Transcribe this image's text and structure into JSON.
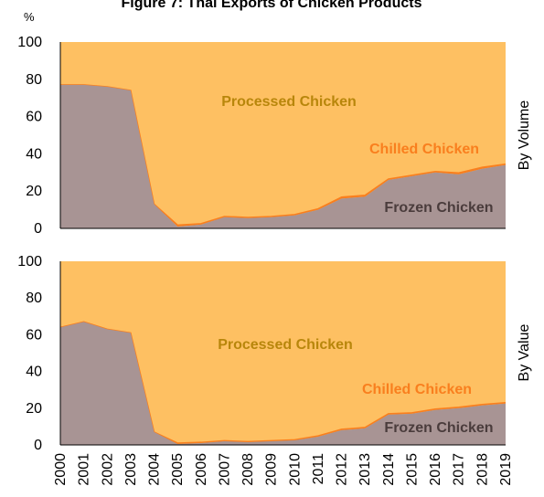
{
  "chart_data": {
    "type": "area",
    "title": "Figure 7: Thai Exports of Chicken Products",
    "unit_label": "%",
    "x": [
      "2000",
      "2001",
      "2002",
      "2003",
      "2004",
      "2005",
      "2006",
      "2007",
      "2008",
      "2009",
      "2010",
      "2011",
      "2012",
      "2013",
      "2014",
      "2015",
      "2016",
      "2017",
      "2018",
      "2019"
    ],
    "ylim": [
      0,
      100
    ],
    "yticks": [
      "0",
      "20",
      "40",
      "60",
      "80",
      "100"
    ],
    "colors": {
      "frozen": "#a89494",
      "chilled": "#f97f1e",
      "processed": "#fec062",
      "processed_label": "#b8860b",
      "chilled_label": "#f97f1e",
      "frozen_label": "#4a3c3c"
    },
    "panels": [
      {
        "side_label": "By Volume",
        "series": [
          {
            "name": "Frozen Chicken",
            "values": [
              77,
              77,
              76,
              74,
              13,
              1,
              2,
              6,
              5.5,
              6,
              7,
              10,
              16,
              17,
              26,
              28,
              30,
              29,
              32,
              34
            ]
          },
          {
            "name": "Chilled Chicken",
            "values": [
              0,
              0,
              0,
              0,
              0,
              0.8,
              0.5,
              0.4,
              0.4,
              0.4,
              0.4,
              0.5,
              0.8,
              0.8,
              0.5,
              0.5,
              0.5,
              0.8,
              0.8,
              0.5
            ]
          },
          {
            "name": "Processed Chicken",
            "values": [
              23,
              23,
              24,
              26,
              87,
              98.2,
              97.5,
              93.6,
              94.1,
              93.6,
              92.6,
              89.5,
              83.2,
              82.2,
              73.5,
              71.5,
              69.5,
              70.2,
              67.2,
              65.5
            ]
          }
        ],
        "labels": {
          "processed": "Processed Chicken",
          "chilled": "Chilled Chicken",
          "frozen": "Frozen Chicken"
        }
      },
      {
        "side_label": "By Value",
        "series": [
          {
            "name": "Frozen Chicken",
            "values": [
              64,
              67,
              63,
              61,
              7,
              0.5,
              1,
              2,
              1.5,
              2,
              2.5,
              4.5,
              8,
              9,
              16.5,
              17,
              19,
              20,
              21.5,
              22.5
            ]
          },
          {
            "name": "Chilled Chicken",
            "values": [
              0,
              0,
              0,
              0,
              0,
              0.5,
              0.4,
              0.3,
              0.3,
              0.3,
              0.3,
              0.4,
              0.5,
              0.5,
              0.5,
              0.5,
              0.5,
              0.5,
              0.5,
              0.5
            ]
          },
          {
            "name": "Processed Chicken",
            "values": [
              36,
              33,
              37,
              39,
              93,
              99,
              98.6,
              97.7,
              98.2,
              97.7,
              97.2,
              95.1,
              91.5,
              90.5,
              83,
              82.5,
              80.5,
              79.5,
              78,
              77
            ]
          }
        ],
        "labels": {
          "processed": "Processed Chicken",
          "chilled": "Chilled Chicken",
          "frozen": "Frozen Chicken"
        }
      }
    ]
  }
}
